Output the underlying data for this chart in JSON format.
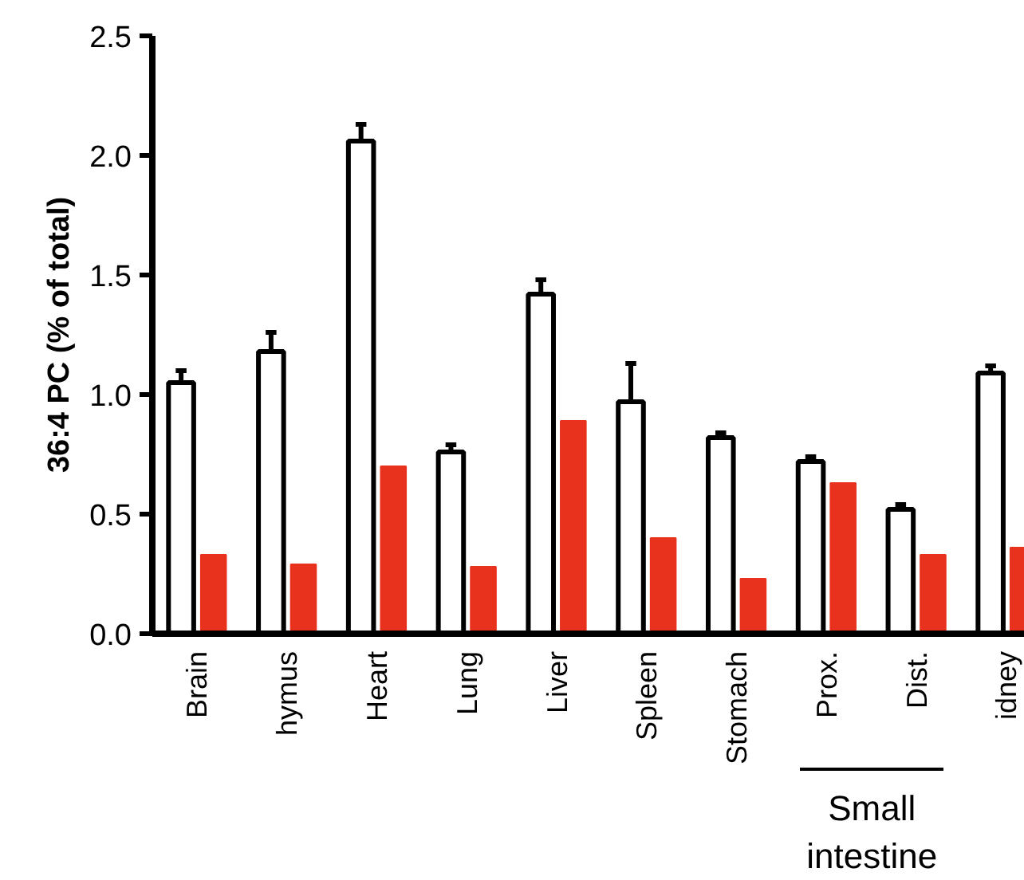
{
  "chart_data": {
    "type": "bar",
    "ylabel": "36:4 PC (% of total)",
    "categories": [
      "Brain",
      "hymus",
      "Heart",
      "Lung",
      "Liver",
      "Spleen",
      "Stomach",
      "Prox.",
      "Dist.",
      "idney"
    ],
    "series": [
      {
        "color": "#ffffff",
        "values": [
          1.05,
          1.18,
          2.06,
          0.76,
          1.42,
          0.97,
          0.82,
          0.72,
          0.52,
          1.09
        ],
        "errors": [
          0.05,
          0.08,
          0.07,
          0.03,
          0.06,
          0.16,
          0.02,
          0.02,
          0.02,
          0.03
        ]
      },
      {
        "color": "#e8321e",
        "values": [
          0.33,
          0.29,
          0.7,
          0.28,
          0.89,
          0.4,
          0.23,
          0.63,
          0.33,
          0.36
        ]
      }
    ],
    "annotations": [
      "Small intestine"
    ],
    "ylim": [
      0,
      2.5
    ],
    "yticks": [
      {
        "value": 0,
        "label": "0.0"
      },
      {
        "value": 0.5,
        "label": "0.5"
      },
      {
        "value": 1,
        "label": "1.0"
      },
      {
        "value": 1.5,
        "label": "1.5"
      },
      {
        "value": 2,
        "label": "2.0"
      },
      {
        "value": 2.5,
        "label": "2.5"
      }
    ],
    "grid": false
  }
}
